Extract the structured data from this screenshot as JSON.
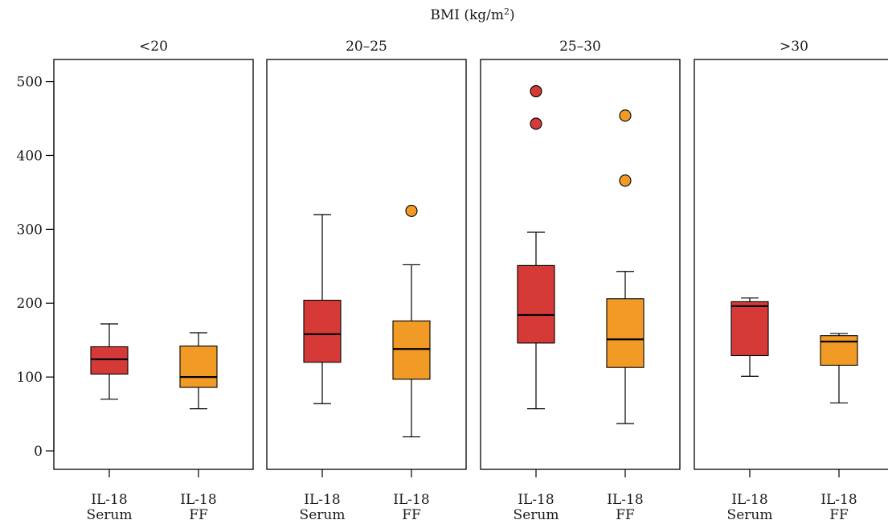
{
  "chart_data": {
    "type": "boxplot",
    "title": "BMI (kg/m²)",
    "title_text": "BMI (kg/m",
    "title_sup": "2",
    "title_close": ")",
    "ylim": [
      -25,
      530
    ],
    "yticks": [
      0,
      100,
      200,
      300,
      400,
      500
    ],
    "categories": [
      {
        "line1": "IL-18",
        "line2": "Serum"
      },
      {
        "line1": "IL-18",
        "line2": "FF"
      }
    ],
    "colors": {
      "serum": "#d63a36",
      "ff": "#f29a26"
    },
    "panels": [
      {
        "label": "<20",
        "boxes": [
          {
            "q1": 104,
            "median": 124,
            "q3": 141,
            "whisker_low": 70,
            "whisker_high": 172,
            "outliers": [],
            "color": "#d63a36"
          },
          {
            "q1": 86,
            "median": 100,
            "q3": 142,
            "whisker_low": 57,
            "whisker_high": 160,
            "outliers": [],
            "color": "#f29a26"
          }
        ]
      },
      {
        "label": "20–25",
        "boxes": [
          {
            "q1": 120,
            "median": 158,
            "q3": 204,
            "whisker_low": 64,
            "whisker_high": 320,
            "outliers": [],
            "color": "#d63a36"
          },
          {
            "q1": 97,
            "median": 138,
            "q3": 176,
            "whisker_low": 19,
            "whisker_high": 252,
            "outliers": [
              325
            ],
            "color": "#f29a26"
          }
        ]
      },
      {
        "label": "25–30",
        "boxes": [
          {
            "q1": 146,
            "median": 184,
            "q3": 251,
            "whisker_low": 57,
            "whisker_high": 296,
            "outliers": [
              443,
              487
            ],
            "color": "#d63a36"
          },
          {
            "q1": 113,
            "median": 151,
            "q3": 206,
            "whisker_low": 37,
            "whisker_high": 243,
            "outliers": [
              366,
              454
            ],
            "color": "#f29a26"
          }
        ]
      },
      {
        "label": ">30",
        "boxes": [
          {
            "q1": 129,
            "median": 196,
            "q3": 202,
            "whisker_low": 101,
            "whisker_high": 207,
            "outliers": [],
            "color": "#d63a36"
          },
          {
            "q1": 116,
            "median": 148,
            "q3": 156,
            "whisker_low": 65,
            "whisker_high": 159,
            "outliers": [],
            "color": "#f29a26"
          }
        ]
      }
    ]
  }
}
